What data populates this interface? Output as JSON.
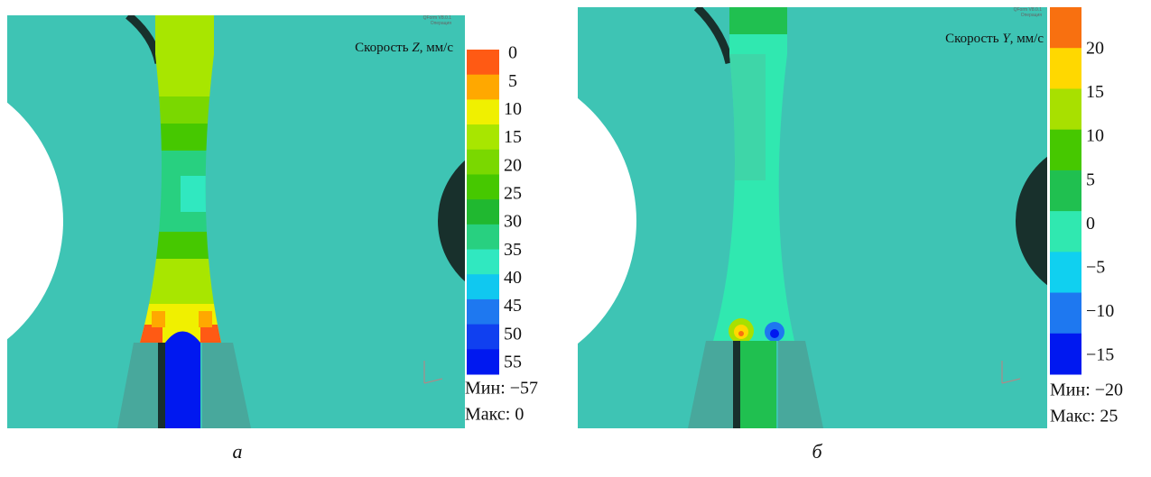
{
  "panels": [
    {
      "program": "QForm V8.0.1",
      "operation": "Операция",
      "title": {
        "prefix": "Скорость ",
        "axis": "Z",
        "suffix": ", мм/с"
      },
      "legend": {
        "labels": [
          "0",
          "5",
          "10",
          "15",
          "20",
          "25",
          "30",
          "35",
          "40",
          "45",
          "50",
          "55"
        ],
        "colors": [
          "#ff5a14",
          "#ffa800",
          "#f0f000",
          "#a8e600",
          "#7ad800",
          "#46c800",
          "#20b830",
          "#28d080",
          "#30e8c0",
          "#10c8f0",
          "#1e78f0",
          "#1040f0",
          "#0018f0"
        ]
      },
      "min": "Мин: −57",
      "max": "Макс:  0",
      "caption": "а"
    },
    {
      "program": "QForm V8.0.1",
      "operation": "Операция",
      "title": {
        "prefix": "Скорость ",
        "axis": "Y",
        "suffix": ", мм/с"
      },
      "legend": {
        "labels": [
          "20",
          "15",
          "10",
          "5",
          "0",
          "−5",
          "−10",
          "−15"
        ],
        "colors": [
          "#f87010",
          "#ffd800",
          "#a8e000",
          "#46c800",
          "#20c050",
          "#30e8b0",
          "#10d0f0",
          "#1e78f0",
          "#0018f0"
        ]
      },
      "min": "Мин: −20",
      "max": "Макс: 25",
      "caption": "б"
    }
  ]
}
